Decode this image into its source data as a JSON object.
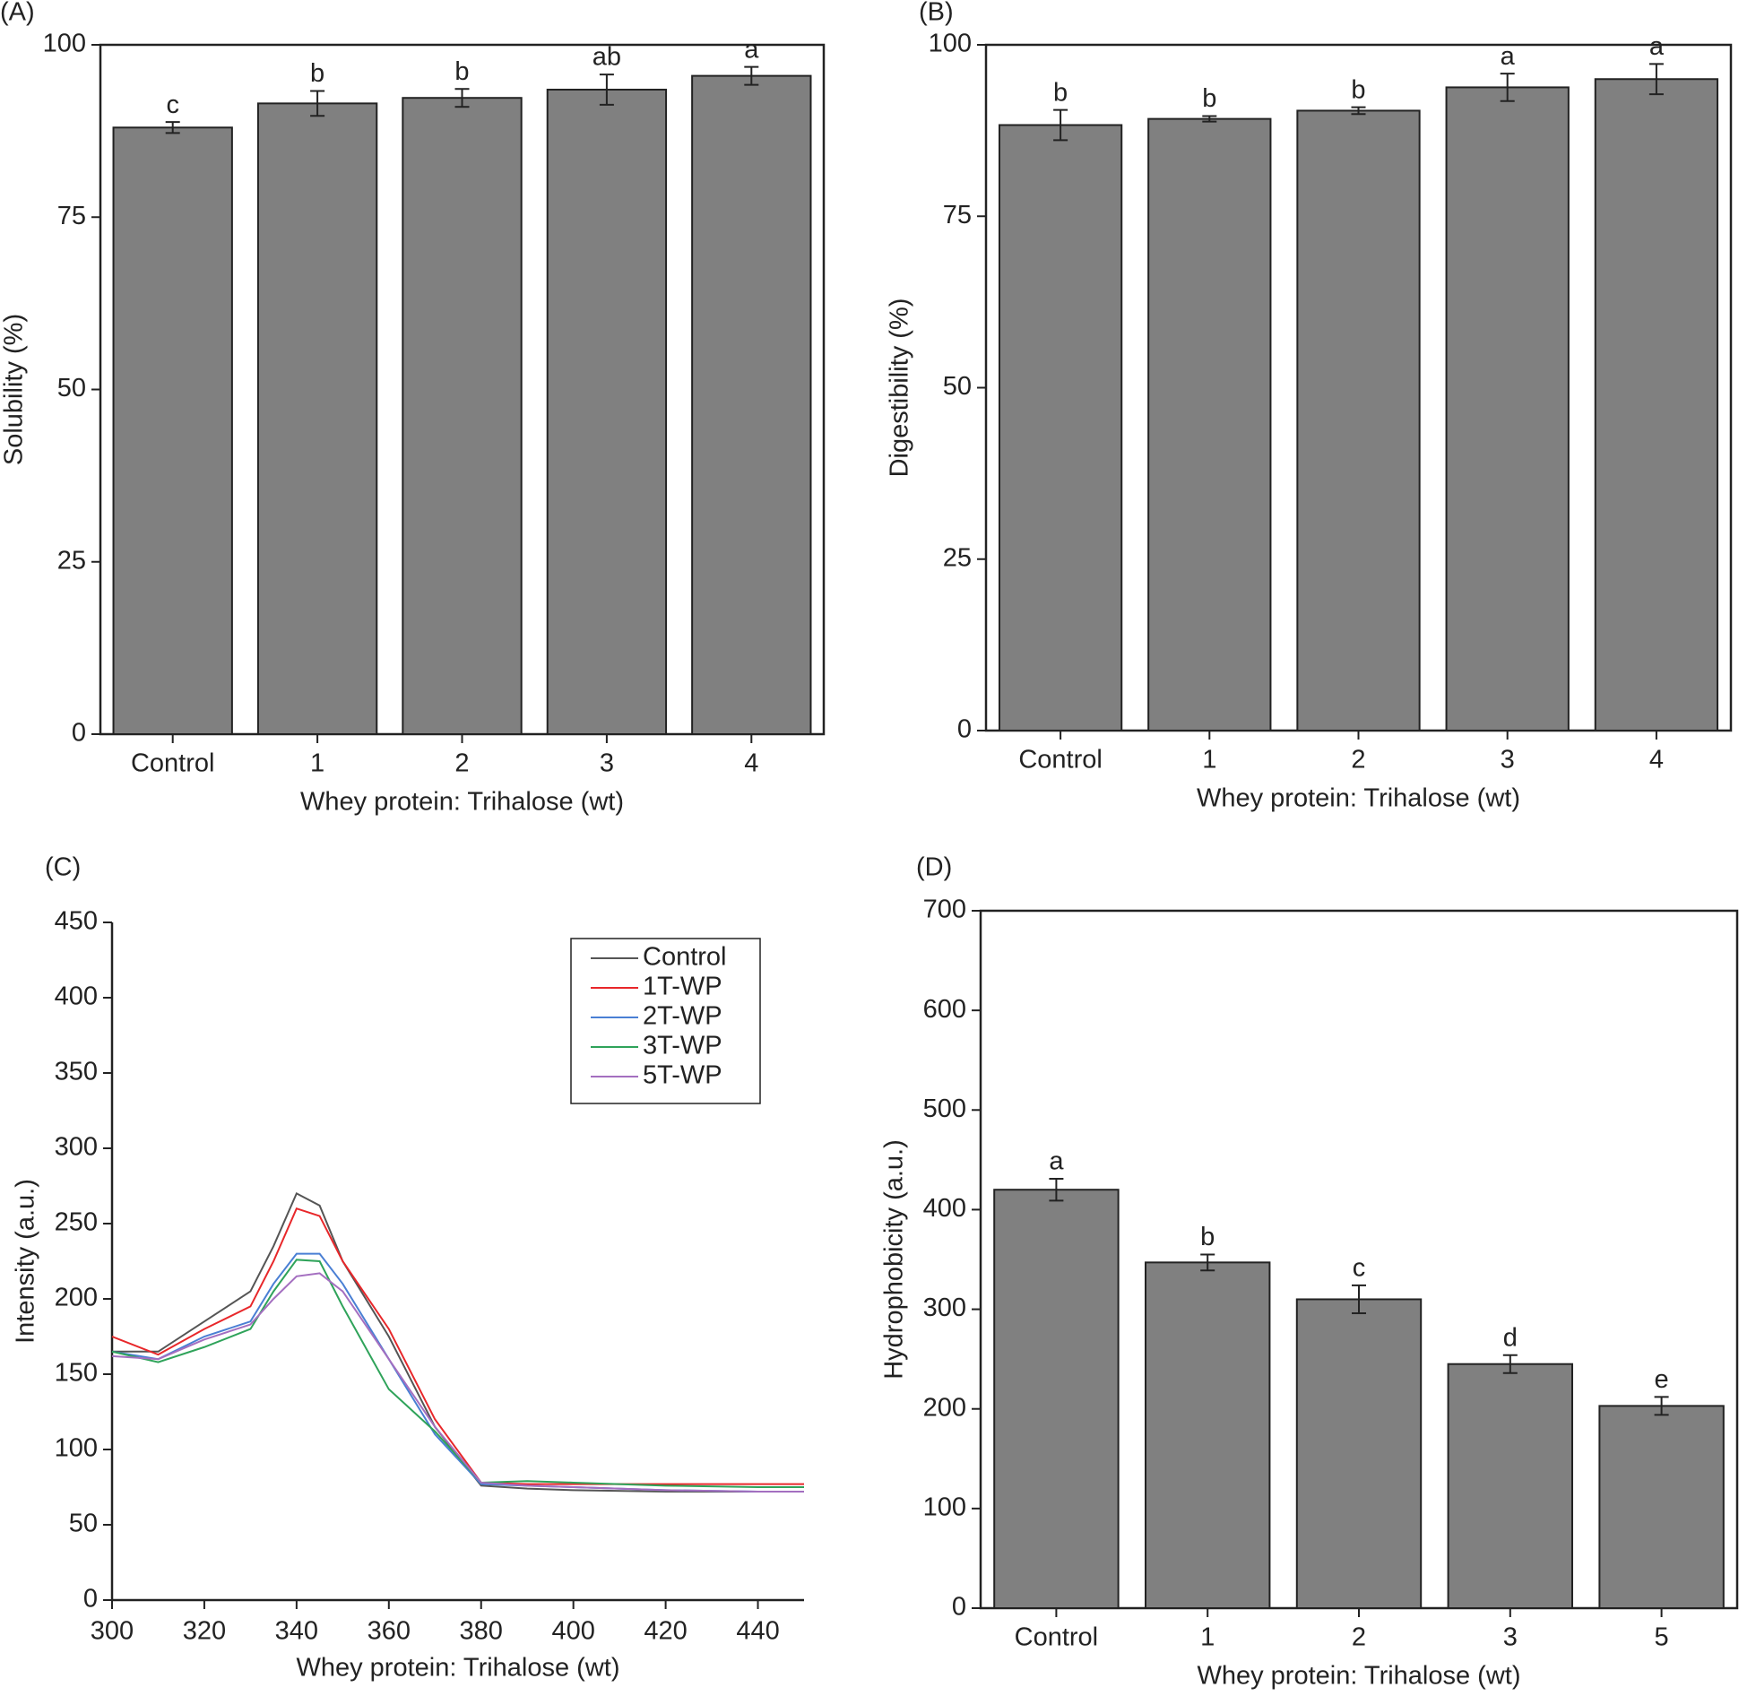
{
  "chart_data": [
    {
      "type": "bar",
      "title": "(A)",
      "x_label": "Whey protein: Trihalose (wt)",
      "y_label": "Solubility (%)",
      "categories": [
        "Control",
        "1",
        "2",
        "3",
        "4"
      ],
      "series": [
        {
          "color": "#808080",
          "values": [
            88,
            91.5,
            92.3,
            93.5,
            95.5
          ],
          "errors": [
            0.8,
            1.8,
            1.3,
            2.2,
            1.3
          ]
        }
      ],
      "annotations": [
        "c",
        "b",
        "b",
        "ab",
        "a"
      ],
      "ylim": [
        0,
        100
      ],
      "yticks": [
        0,
        25,
        50,
        75,
        100
      ]
    },
    {
      "type": "bar",
      "title": "(B)",
      "x_label": "Whey protein: Trihalose (wt)",
      "y_label": "Digestibility (%)",
      "categories": [
        "Control",
        "1",
        "2",
        "3",
        "4"
      ],
      "series": [
        {
          "color": "#808080",
          "values": [
            88.3,
            89.2,
            90.4,
            93.8,
            95
          ],
          "errors": [
            2.2,
            0.4,
            0.5,
            2,
            2.2
          ]
        }
      ],
      "annotations": [
        "b",
        "b",
        "b",
        "a",
        "a"
      ],
      "ylim": [
        0,
        100
      ],
      "yticks": [
        0,
        25,
        50,
        75,
        100
      ]
    },
    {
      "type": "line",
      "title": "(C)",
      "x_label": "Whey protein: Trihalose (wt)",
      "y_label": "Intensity (a.u.)",
      "x": [
        300,
        310,
        320,
        330,
        335,
        340,
        345,
        350,
        360,
        370,
        380,
        390,
        400,
        420,
        440,
        450
      ],
      "series": [
        {
          "name": "Control",
          "color": "#555555",
          "values": [
            165,
            165,
            185,
            205,
            235,
            270,
            262,
            225,
            175,
            115,
            76,
            74,
            73,
            72,
            72,
            72
          ]
        },
        {
          "name": "1T-WP",
          "color": "#e8272a",
          "values": [
            175,
            163,
            180,
            195,
            225,
            260,
            255,
            225,
            180,
            120,
            78,
            77,
            77,
            77,
            77,
            77
          ]
        },
        {
          "name": "2T-WP",
          "color": "#4a7fd4",
          "values": [
            165,
            160,
            175,
            185,
            210,
            230,
            230,
            210,
            160,
            110,
            77,
            76,
            75,
            73,
            72,
            72
          ]
        },
        {
          "name": "3T-WP",
          "color": "#2fa35a",
          "values": [
            165,
            158,
            168,
            180,
            205,
            226,
            225,
            195,
            140,
            112,
            78,
            79,
            78,
            76,
            75,
            75
          ]
        },
        {
          "name": "5T-WP",
          "color": "#a46fc0",
          "values": [
            162,
            160,
            173,
            183,
            200,
            215,
            217,
            205,
            160,
            115,
            78,
            76,
            75,
            73,
            72,
            72
          ]
        }
      ],
      "xlim": [
        300,
        450
      ],
      "xticks": [
        300,
        320,
        340,
        360,
        380,
        400,
        420,
        440
      ],
      "ylim": [
        0,
        450
      ],
      "yticks": [
        0,
        50,
        100,
        150,
        200,
        250,
        300,
        350,
        400,
        450
      ],
      "legend": "upper right"
    },
    {
      "type": "bar",
      "title": "(D)",
      "x_label": "Whey protein: Trihalose (wt)",
      "y_label": "Hydrophobicity (a.u.)",
      "categories": [
        "Control",
        "1",
        "2",
        "3",
        "5"
      ],
      "series": [
        {
          "color": "#808080",
          "values": [
            420,
            347,
            310,
            245,
            203
          ],
          "errors": [
            11,
            8,
            14,
            9,
            9
          ]
        }
      ],
      "annotations": [
        "a",
        "b",
        "c",
        "d",
        "e"
      ],
      "ylim": [
        0,
        700
      ],
      "yticks": [
        0,
        100,
        200,
        300,
        400,
        500,
        600,
        700
      ]
    }
  ]
}
